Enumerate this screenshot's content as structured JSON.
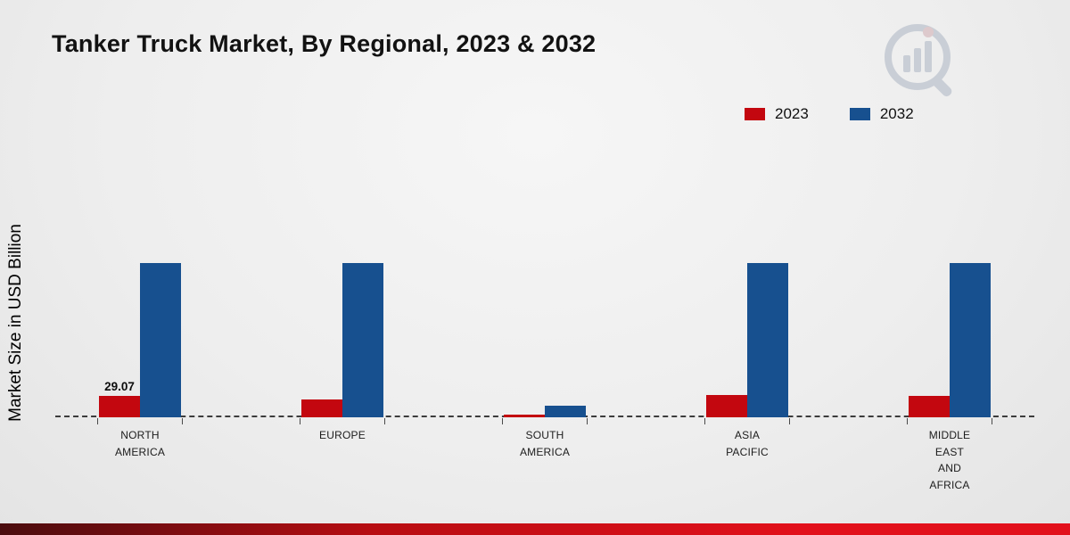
{
  "page": {
    "title": "Tanker Truck Market, By Regional, 2023 & 2032",
    "y_axis_label": "Market Size in USD Billion"
  },
  "legend": {
    "items": [
      {
        "label": "2023",
        "color": "#c3070f"
      },
      {
        "label": "2032",
        "color": "#17508f"
      }
    ]
  },
  "chart_data": {
    "type": "bar",
    "title": "Tanker Truck Market, By Regional, 2023 & 2032",
    "ylabel": "Market Size in USD Billion",
    "xlabel": "",
    "categories": [
      "NORTH AMERICA",
      "EUROPE",
      "SOUTH AMERICA",
      "ASIA PACIFIC",
      "MIDDLE EAST AND AFRICA"
    ],
    "category_lines": [
      [
        "NORTH",
        "AMERICA"
      ],
      [
        "EUROPE"
      ],
      [
        "SOUTH",
        "AMERICA"
      ],
      [
        "ASIA",
        "PACIFIC"
      ],
      [
        "MIDDLE",
        "EAST",
        "AND",
        "AFRICA"
      ]
    ],
    "series": [
      {
        "name": "2023",
        "color": "#c3070f",
        "values": [
          29.07,
          24.5,
          3.5,
          30.5,
          29
        ]
      },
      {
        "name": "2032",
        "color": "#17508f",
        "values": [
          210,
          210,
          16,
          210,
          210
        ]
      }
    ],
    "bar_labels": [
      {
        "category_index": 0,
        "series_index": 0,
        "text": "29.07"
      }
    ],
    "ylim": [
      0,
      220
    ],
    "grid": false,
    "baseline_style": "dashed",
    "legend_position": "top-right"
  },
  "colors": {
    "accent_red": "#c3070f",
    "accent_blue": "#17508f",
    "bottom_bar_left": "#4a0c0e",
    "bottom_bar_mid": "#b80d12",
    "bottom_bar_right": "#e2101b"
  }
}
